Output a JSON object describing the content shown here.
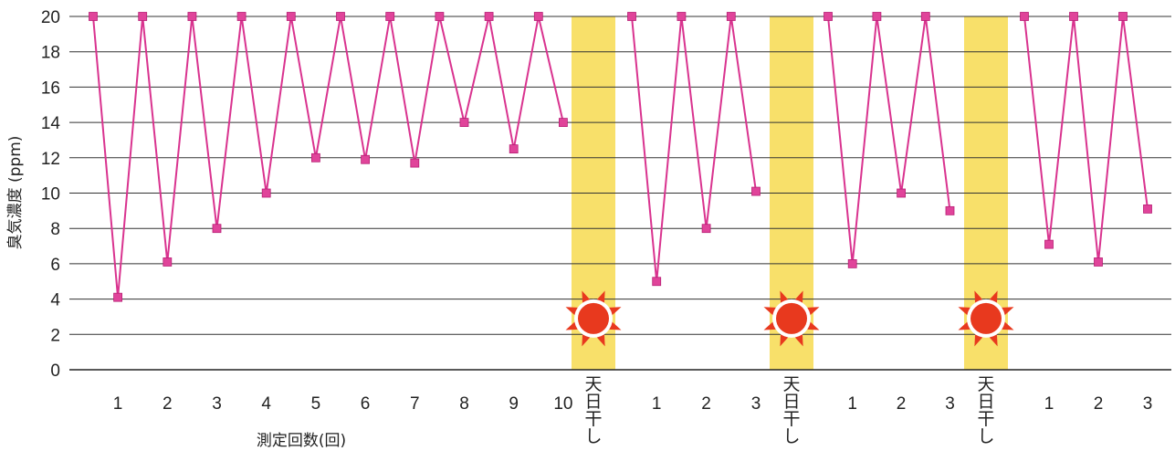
{
  "chart_data": {
    "type": "line",
    "ylabel": "臭気濃度 (ppm)",
    "xlabel": "測定回数(回)",
    "ylim": [
      0,
      20
    ],
    "yticks": [
      "0",
      "2",
      "4",
      "6",
      "8",
      "10",
      "12",
      "14",
      "16",
      "18",
      "20"
    ],
    "grid": true,
    "line_color": "#d9338f",
    "marker_color": "#e0449a",
    "highlight_color": "#f8e06a",
    "sun_color": "#e8391e",
    "sun_ray_color": "#f0a020",
    "sun_label": [
      "天",
      "日",
      "干",
      "し"
    ],
    "segments": [
      {
        "tick_labels": [
          "1",
          "2",
          "3",
          "4",
          "5",
          "6",
          "7",
          "8",
          "9",
          "10"
        ],
        "points": [
          20,
          4.1,
          20,
          6.1,
          20,
          8.0,
          20,
          10.0,
          20,
          12.0,
          20,
          11.9,
          20,
          11.7,
          20,
          14.0,
          20,
          12.5,
          20,
          14.0
        ]
      },
      {
        "tick_labels": [
          "1",
          "2",
          "3"
        ],
        "points": [
          20,
          5.0,
          20,
          8.0,
          20,
          10.1
        ]
      },
      {
        "tick_labels": [
          "1",
          "2",
          "3"
        ],
        "points": [
          20,
          6.0,
          20,
          10.0,
          20,
          9.0
        ]
      },
      {
        "tick_labels": [
          "1",
          "2",
          "3"
        ],
        "points": [
          20,
          7.1,
          20,
          6.1,
          20,
          9.1
        ]
      }
    ]
  }
}
